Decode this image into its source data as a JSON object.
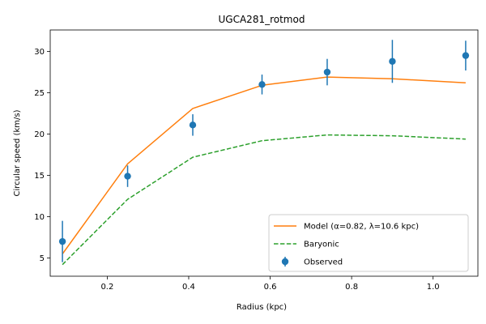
{
  "chart_data": {
    "type": "line",
    "title": "UGCA281_rotmod",
    "xlabel": "Radius (kpc)",
    "ylabel": "Circular speed (km/s)",
    "xlim": [
      0.06,
      1.11
    ],
    "ylim": [
      2.8,
      32.6
    ],
    "xticks": [
      0.2,
      0.4,
      0.6,
      0.8,
      1.0
    ],
    "xtick_labels": [
      "0.2",
      "0.4",
      "0.6",
      "0.8",
      "1.0"
    ],
    "yticks": [
      5,
      10,
      15,
      20,
      25,
      30
    ],
    "ytick_labels": [
      "5",
      "10",
      "15",
      "20",
      "25",
      "30"
    ],
    "grid": false,
    "legend_position": "lower-right",
    "series": [
      {
        "name": "Model (α=0.82, λ=10.6 kpc)",
        "kind": "line",
        "color": "#ff7f0e",
        "dash": "solid",
        "x": [
          0.09,
          0.25,
          0.41,
          0.58,
          0.74,
          0.9,
          1.08
        ],
        "y": [
          5.5,
          16.4,
          23.1,
          25.9,
          26.9,
          26.7,
          26.2
        ]
      },
      {
        "name": "Baryonic",
        "kind": "line",
        "color": "#2ca02c",
        "dash": "dashed",
        "x": [
          0.09,
          0.25,
          0.41,
          0.58,
          0.74,
          0.9,
          1.08
        ],
        "y": [
          4.2,
          12.1,
          17.2,
          19.2,
          19.9,
          19.8,
          19.4
        ]
      },
      {
        "name": "Observed",
        "kind": "errorbar",
        "color": "#1f77b4",
        "x": [
          0.09,
          0.25,
          0.41,
          0.58,
          0.74,
          0.9,
          1.08
        ],
        "y": [
          7.0,
          14.9,
          21.1,
          26.0,
          27.5,
          28.8,
          29.5
        ],
        "yerr": [
          2.5,
          1.3,
          1.3,
          1.2,
          1.6,
          2.6,
          1.8
        ]
      }
    ]
  }
}
